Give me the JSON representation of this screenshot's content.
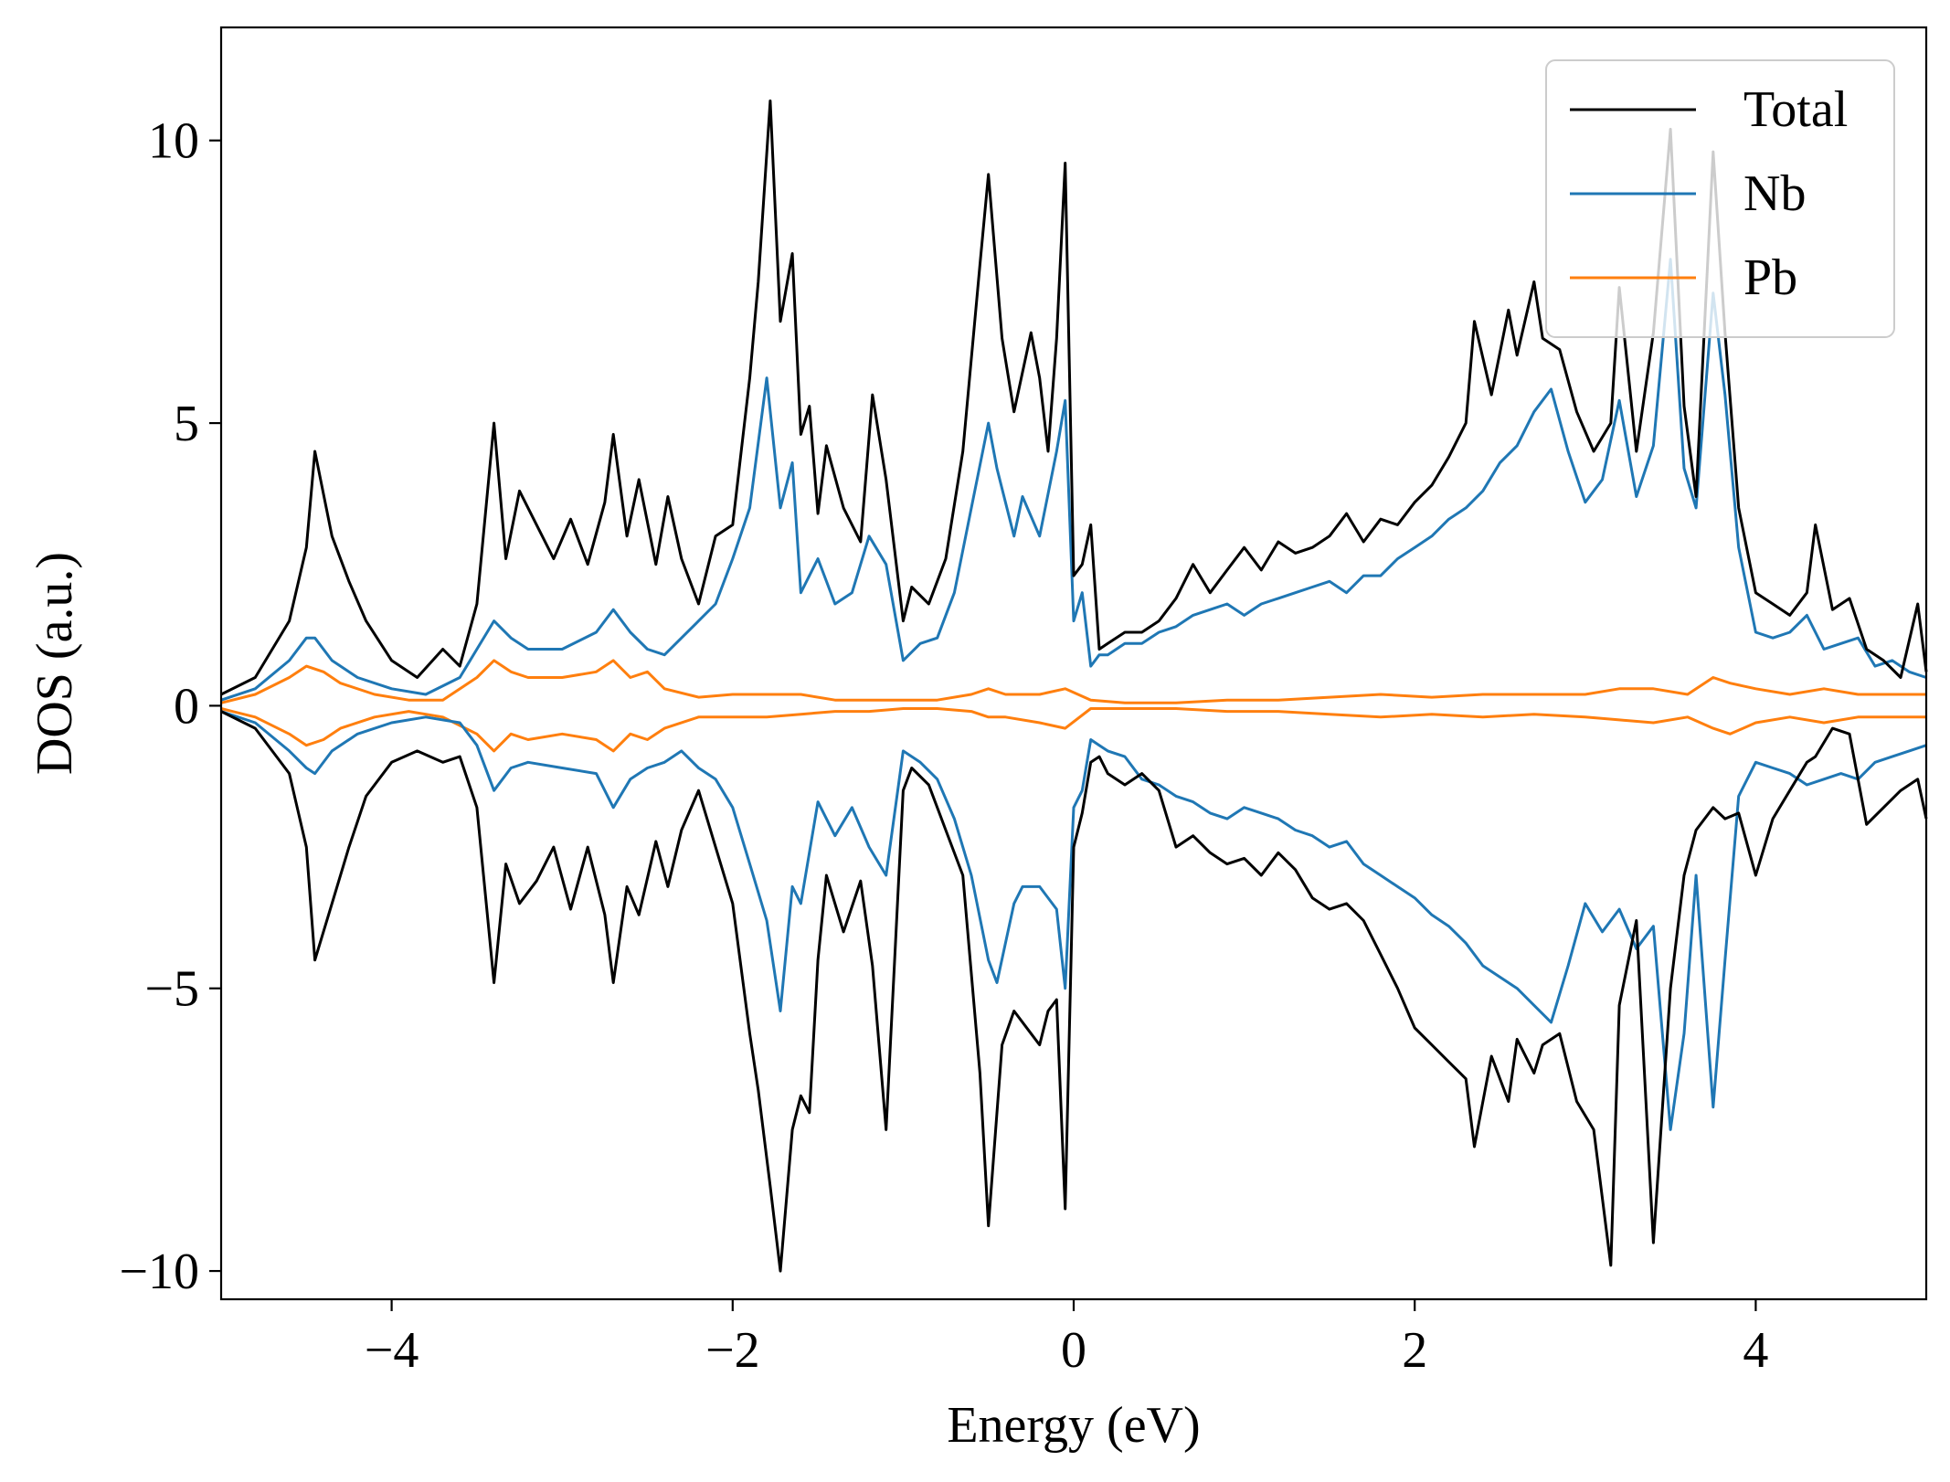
{
  "chart_data": {
    "type": "line",
    "title": "",
    "xlabel": "Energy (eV)",
    "ylabel": "DOS (a.u.)",
    "xlim": [
      -5,
      5
    ],
    "ylim": [
      -10.5,
      12.0
    ],
    "xticks": [
      -4,
      -2,
      0,
      2,
      4
    ],
    "xtick_labels": [
      "−4",
      "−2",
      "0",
      "2",
      "4"
    ],
    "yticks": [
      -10,
      -5,
      0,
      5,
      10
    ],
    "ytick_labels": [
      "−10",
      "−5",
      "0",
      "5",
      "10"
    ],
    "grid": false,
    "legend_position": "top-right",
    "legend": [
      "Total",
      "Nb",
      "Pb"
    ],
    "series": [
      {
        "name": "Total",
        "color": "#000000",
        "x": [
          -5.0,
          -4.8,
          -4.6,
          -4.5,
          -4.45,
          -4.35,
          -4.25,
          -4.15,
          -4.0,
          -3.85,
          -3.7,
          -3.6,
          -3.5,
          -3.4,
          -3.33,
          -3.25,
          -3.15,
          -3.05,
          -2.95,
          -2.85,
          -2.75,
          -2.7,
          -2.62,
          -2.55,
          -2.45,
          -2.38,
          -2.3,
          -2.2,
          -2.1,
          -2.0,
          -1.9,
          -1.85,
          -1.78,
          -1.72,
          -1.65,
          -1.6,
          -1.55,
          -1.5,
          -1.45,
          -1.35,
          -1.25,
          -1.18,
          -1.1,
          -1.0,
          -0.95,
          -0.85,
          -0.75,
          -0.65,
          -0.55,
          -0.5,
          -0.42,
          -0.35,
          -0.25,
          -0.2,
          -0.15,
          -0.1,
          -0.05,
          0.0,
          0.05,
          0.1,
          0.15,
          0.2,
          0.3,
          0.4,
          0.5,
          0.6,
          0.7,
          0.8,
          0.9,
          1.0,
          1.1,
          1.2,
          1.3,
          1.4,
          1.5,
          1.6,
          1.7,
          1.8,
          1.9,
          2.0,
          2.1,
          2.2,
          2.3,
          2.35,
          2.45,
          2.55,
          2.6,
          2.7,
          2.75,
          2.85,
          2.95,
          3.05,
          3.15,
          3.2,
          3.3,
          3.4,
          3.5,
          3.58,
          3.65,
          3.75,
          3.82,
          3.9,
          4.0,
          4.1,
          4.2,
          4.3,
          4.35,
          4.45,
          4.55,
          4.65,
          4.75,
          4.85,
          4.95,
          5.0
        ],
        "up": [
          0.2,
          0.5,
          1.5,
          2.8,
          4.5,
          3.0,
          2.2,
          1.5,
          0.8,
          0.5,
          1.0,
          0.7,
          1.8,
          5.0,
          2.6,
          3.8,
          3.2,
          2.6,
          3.3,
          2.5,
          3.6,
          4.8,
          3.0,
          4.0,
          2.5,
          3.7,
          2.6,
          1.8,
          3.0,
          3.2,
          5.8,
          7.5,
          10.7,
          6.8,
          8.0,
          4.8,
          5.3,
          3.4,
          4.6,
          3.5,
          2.9,
          5.5,
          4.0,
          1.5,
          2.1,
          1.8,
          2.6,
          4.5,
          7.8,
          9.4,
          6.5,
          5.2,
          6.6,
          5.8,
          4.5,
          6.5,
          9.6,
          2.3,
          2.5,
          3.2,
          1.0,
          1.1,
          1.3,
          1.3,
          1.5,
          1.9,
          2.5,
          2.0,
          2.4,
          2.8,
          2.4,
          2.9,
          2.7,
          2.8,
          3.0,
          3.4,
          2.9,
          3.3,
          3.2,
          3.6,
          3.9,
          4.4,
          5.0,
          6.8,
          5.5,
          7.0,
          6.2,
          7.5,
          6.5,
          6.3,
          5.2,
          4.5,
          5.0,
          7.4,
          4.5,
          6.6,
          10.2,
          5.3,
          3.7,
          9.8,
          6.6,
          3.5,
          2.0,
          1.8,
          1.6,
          2.0,
          3.2,
          1.7,
          1.9,
          1.0,
          0.8,
          0.5,
          1.8,
          0.6
        ],
        "down": [
          -0.1,
          -0.4,
          -1.2,
          -2.5,
          -4.5,
          -3.5,
          -2.5,
          -1.6,
          -1.0,
          -0.8,
          -1.0,
          -0.9,
          -1.8,
          -4.9,
          -2.8,
          -3.5,
          -3.1,
          -2.5,
          -3.6,
          -2.5,
          -3.7,
          -4.9,
          -3.2,
          -3.7,
          -2.4,
          -3.2,
          -2.2,
          -1.5,
          -2.5,
          -3.5,
          -5.8,
          -6.8,
          -8.5,
          -10.0,
          -7.5,
          -6.9,
          -7.2,
          -4.5,
          -3.0,
          -4.0,
          -3.1,
          -4.6,
          -7.5,
          -1.5,
          -1.1,
          -1.4,
          -2.2,
          -3.0,
          -6.5,
          -9.2,
          -6.0,
          -5.4,
          -5.8,
          -6.0,
          -5.4,
          -5.2,
          -8.9,
          -2.5,
          -1.9,
          -1.0,
          -0.9,
          -1.2,
          -1.4,
          -1.2,
          -1.5,
          -2.5,
          -2.3,
          -2.6,
          -2.8,
          -2.7,
          -3.0,
          -2.6,
          -2.9,
          -3.4,
          -3.6,
          -3.5,
          -3.8,
          -4.4,
          -5.0,
          -5.7,
          -6.0,
          -6.3,
          -6.6,
          -7.8,
          -6.2,
          -7.0,
          -5.9,
          -6.5,
          -6.0,
          -5.8,
          -7.0,
          -7.5,
          -9.9,
          -5.3,
          -3.8,
          -9.5,
          -5.0,
          -3.0,
          -2.2,
          -1.8,
          -2.0,
          -1.9,
          -3.0,
          -2.0,
          -1.5,
          -1.0,
          -0.9,
          -0.4,
          -0.5,
          -2.1,
          -1.8,
          -1.5,
          -1.3,
          -2.0
        ]
      },
      {
        "name": "Nb",
        "color": "#1f77b4",
        "x": [
          -5.0,
          -4.8,
          -4.6,
          -4.5,
          -4.45,
          -4.35,
          -4.2,
          -4.0,
          -3.8,
          -3.6,
          -3.5,
          -3.4,
          -3.3,
          -3.2,
          -3.0,
          -2.8,
          -2.7,
          -2.6,
          -2.5,
          -2.4,
          -2.3,
          -2.2,
          -2.1,
          -2.0,
          -1.9,
          -1.8,
          -1.72,
          -1.65,
          -1.6,
          -1.5,
          -1.4,
          -1.3,
          -1.2,
          -1.1,
          -1.0,
          -0.9,
          -0.8,
          -0.7,
          -0.6,
          -0.5,
          -0.45,
          -0.35,
          -0.3,
          -0.2,
          -0.1,
          -0.05,
          0.0,
          0.05,
          0.1,
          0.15,
          0.2,
          0.3,
          0.4,
          0.5,
          0.6,
          0.7,
          0.8,
          0.9,
          1.0,
          1.1,
          1.2,
          1.3,
          1.4,
          1.5,
          1.6,
          1.7,
          1.8,
          1.9,
          2.0,
          2.1,
          2.2,
          2.3,
          2.4,
          2.5,
          2.6,
          2.7,
          2.8,
          2.9,
          3.0,
          3.1,
          3.2,
          3.3,
          3.4,
          3.5,
          3.58,
          3.65,
          3.75,
          3.82,
          3.9,
          4.0,
          4.1,
          4.2,
          4.3,
          4.4,
          4.5,
          4.6,
          4.7,
          4.8,
          4.9,
          5.0
        ],
        "up": [
          0.1,
          0.3,
          0.8,
          1.2,
          1.2,
          0.8,
          0.5,
          0.3,
          0.2,
          0.5,
          1.0,
          1.5,
          1.2,
          1.0,
          1.0,
          1.3,
          1.7,
          1.3,
          1.0,
          0.9,
          1.2,
          1.5,
          1.8,
          2.6,
          3.5,
          5.8,
          3.5,
          4.3,
          2.0,
          2.6,
          1.8,
          2.0,
          3.0,
          2.5,
          0.8,
          1.1,
          1.2,
          2.0,
          3.5,
          5.0,
          4.2,
          3.0,
          3.7,
          3.0,
          4.5,
          5.4,
          1.5,
          2.0,
          0.7,
          0.9,
          0.9,
          1.1,
          1.1,
          1.3,
          1.4,
          1.6,
          1.7,
          1.8,
          1.6,
          1.8,
          1.9,
          2.0,
          2.1,
          2.2,
          2.0,
          2.3,
          2.3,
          2.6,
          2.8,
          3.0,
          3.3,
          3.5,
          3.8,
          4.3,
          4.6,
          5.2,
          5.6,
          4.5,
          3.6,
          4.0,
          5.4,
          3.7,
          4.6,
          7.9,
          4.2,
          3.5,
          7.3,
          5.5,
          2.8,
          1.3,
          1.2,
          1.3,
          1.6,
          1.0,
          1.1,
          1.2,
          0.7,
          0.8,
          0.6,
          0.5
        ],
        "down": [
          -0.1,
          -0.3,
          -0.8,
          -1.1,
          -1.2,
          -0.8,
          -0.5,
          -0.3,
          -0.2,
          -0.3,
          -0.7,
          -1.5,
          -1.1,
          -1.0,
          -1.1,
          -1.2,
          -1.8,
          -1.3,
          -1.1,
          -1.0,
          -0.8,
          -1.1,
          -1.3,
          -1.8,
          -2.8,
          -3.8,
          -5.4,
          -3.2,
          -3.5,
          -1.7,
          -2.3,
          -1.8,
          -2.5,
          -3.0,
          -0.8,
          -1.0,
          -1.3,
          -2.0,
          -3.0,
          -4.5,
          -4.9,
          -3.5,
          -3.2,
          -3.2,
          -3.6,
          -5.0,
          -1.8,
          -1.5,
          -0.6,
          -0.7,
          -0.8,
          -0.9,
          -1.3,
          -1.4,
          -1.6,
          -1.7,
          -1.9,
          -2.0,
          -1.8,
          -1.9,
          -2.0,
          -2.2,
          -2.3,
          -2.5,
          -2.4,
          -2.8,
          -3.0,
          -3.2,
          -3.4,
          -3.7,
          -3.9,
          -4.2,
          -4.6,
          -4.8,
          -5.0,
          -5.3,
          -5.6,
          -4.6,
          -3.5,
          -4.0,
          -3.6,
          -4.3,
          -3.9,
          -7.5,
          -5.8,
          -3.0,
          -7.1,
          -4.5,
          -1.6,
          -1.0,
          -1.1,
          -1.2,
          -1.4,
          -1.3,
          -1.2,
          -1.3,
          -1.0,
          -0.9,
          -0.8,
          -0.7
        ]
      },
      {
        "name": "Pb",
        "color": "#ff7f0e",
        "x": [
          -5.0,
          -4.8,
          -4.6,
          -4.5,
          -4.4,
          -4.3,
          -4.1,
          -3.9,
          -3.7,
          -3.5,
          -3.4,
          -3.3,
          -3.2,
          -3.0,
          -2.8,
          -2.7,
          -2.6,
          -2.5,
          -2.4,
          -2.2,
          -2.0,
          -1.8,
          -1.6,
          -1.4,
          -1.2,
          -1.0,
          -0.8,
          -0.6,
          -0.5,
          -0.4,
          -0.2,
          -0.05,
          0.1,
          0.3,
          0.6,
          0.9,
          1.2,
          1.5,
          1.8,
          2.1,
          2.4,
          2.7,
          3.0,
          3.2,
          3.4,
          3.6,
          3.75,
          3.85,
          4.0,
          4.2,
          4.4,
          4.6,
          4.8,
          5.0
        ],
        "up": [
          0.05,
          0.2,
          0.5,
          0.7,
          0.6,
          0.4,
          0.2,
          0.1,
          0.1,
          0.5,
          0.8,
          0.6,
          0.5,
          0.5,
          0.6,
          0.8,
          0.5,
          0.6,
          0.3,
          0.15,
          0.2,
          0.2,
          0.2,
          0.1,
          0.1,
          0.1,
          0.1,
          0.2,
          0.3,
          0.2,
          0.2,
          0.3,
          0.1,
          0.05,
          0.05,
          0.1,
          0.1,
          0.15,
          0.2,
          0.15,
          0.2,
          0.2,
          0.2,
          0.3,
          0.3,
          0.2,
          0.5,
          0.4,
          0.3,
          0.2,
          0.3,
          0.2,
          0.2,
          0.2
        ],
        "down": [
          -0.05,
          -0.2,
          -0.5,
          -0.7,
          -0.6,
          -0.4,
          -0.2,
          -0.1,
          -0.2,
          -0.5,
          -0.8,
          -0.5,
          -0.6,
          -0.5,
          -0.6,
          -0.8,
          -0.5,
          -0.6,
          -0.4,
          -0.2,
          -0.2,
          -0.2,
          -0.15,
          -0.1,
          -0.1,
          -0.05,
          -0.05,
          -0.1,
          -0.2,
          -0.2,
          -0.3,
          -0.4,
          -0.05,
          -0.05,
          -0.05,
          -0.1,
          -0.1,
          -0.15,
          -0.2,
          -0.15,
          -0.2,
          -0.15,
          -0.2,
          -0.25,
          -0.3,
          -0.2,
          -0.4,
          -0.5,
          -0.3,
          -0.2,
          -0.3,
          -0.2,
          -0.2,
          -0.2
        ]
      }
    ]
  }
}
